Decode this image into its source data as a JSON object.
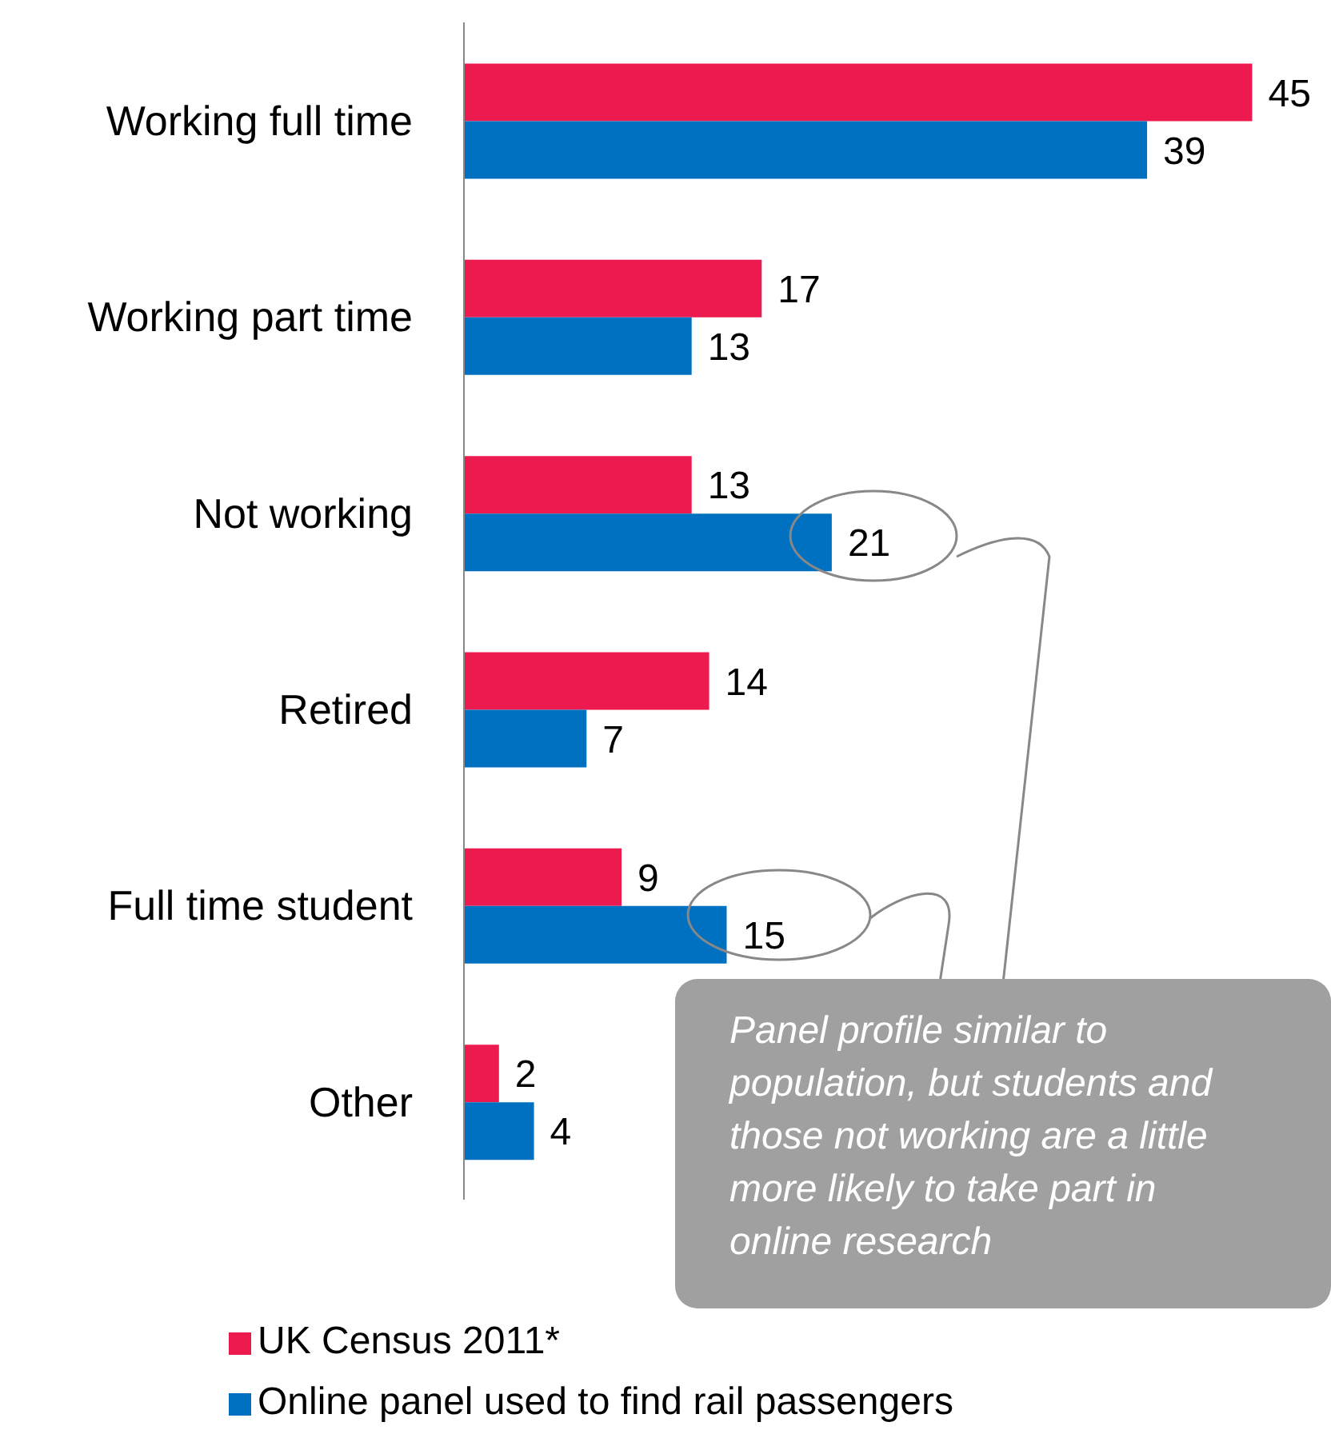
{
  "chart_data": {
    "type": "bar",
    "orientation": "horizontal",
    "categories": [
      "Working full time",
      "Working part time",
      "Not working",
      "Retired",
      "Full time student",
      "Other"
    ],
    "series": [
      {
        "name": "UK Census 2011*",
        "color": "#ed1a4f",
        "values": [
          45,
          17,
          13,
          14,
          9,
          2
        ]
      },
      {
        "name": "Online panel used to find rail passengers",
        "color": "#0070c0",
        "values": [
          39,
          13,
          21,
          7,
          15,
          4
        ]
      }
    ],
    "tick_labels": "y",
    "data_labels": true,
    "grid": false,
    "legend": "bottom left",
    "annotations": [
      "Panel profile similar to population, but students and those not working are a little more likely to take part in online research"
    ]
  }
}
